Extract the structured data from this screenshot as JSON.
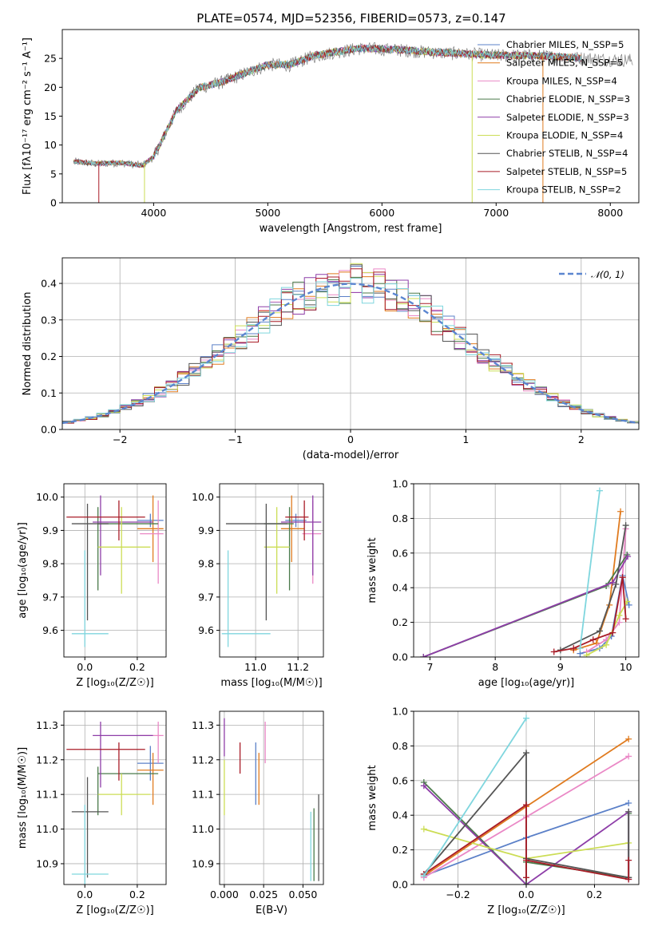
{
  "colors": {
    "c0": "#5b80c8",
    "c1": "#e07b1f",
    "c2": "#ea88c6",
    "c3": "#4a7a4a",
    "c4": "#8e3ea8",
    "c5": "#ccdd55",
    "c6": "#555555",
    "c7": "#a91c27",
    "c8": "#7fd6de"
  },
  "chart_data": [
    {
      "id": "spectrum",
      "type": "line",
      "title": "PLATE=0574, MJD=52356, FIBERID=0573, z=0.147",
      "xlabel": "wavelength [Angstrom, rest frame]",
      "ylabel": "Flux [fλ10⁻¹⁷ erg cm⁻² s⁻¹ A⁻¹]",
      "xlim": [
        3200,
        8250
      ],
      "ylim": [
        0,
        30
      ],
      "xticks": [
        "4000",
        "5000",
        "6000",
        "7000",
        "8000"
      ],
      "yticks": [
        "0",
        "5",
        "10",
        "15",
        "20",
        "25"
      ],
      "grid": false,
      "legend": "top-right",
      "continuum_x": [
        3300,
        3500,
        3700,
        3900,
        4000,
        4200,
        4400,
        4600,
        4800,
        5000,
        5200,
        5400,
        5600,
        5800,
        6000,
        6200,
        6400,
        6600,
        6800,
        7000,
        7200,
        7400,
        7600,
        7800,
        8000,
        8200
      ],
      "continuum_y": [
        7.2,
        6.8,
        7.0,
        6.5,
        8.0,
        16.0,
        20.0,
        21.0,
        22.5,
        24.0,
        24.0,
        25.5,
        26.2,
        26.8,
        26.7,
        26.5,
        26.2,
        26.0,
        25.8,
        25.6,
        25.6,
        25.5,
        25.3,
        25.1,
        24.9,
        24.8
      ],
      "series": [
        {
          "name": "Chabrier MILES, N_SSP=5"
        },
        {
          "name": "Salpeter MILES, N_SSP=5"
        },
        {
          "name": "Kroupa MILES, N_SSP=4"
        },
        {
          "name": "Chabrier ELODIE, N_SSP=3"
        },
        {
          "name": "Salpeter ELODIE, N_SSP=3"
        },
        {
          "name": "Kroupa ELODIE, N_SSP=4"
        },
        {
          "name": "Chabrier STELIB, N_SSP=4"
        },
        {
          "name": "Salpeter STELIB, N_SSP=5"
        },
        {
          "name": "Kroupa STELIB, N_SSP=2"
        }
      ]
    },
    {
      "id": "residuals",
      "type": "bar",
      "xlabel": "(data-model)/error",
      "ylabel": "Normed distribution",
      "xlim": [
        -2.5,
        2.5
      ],
      "ylim": [
        0,
        0.47
      ],
      "xticks": [
        "−2",
        "−1",
        "0",
        "1",
        "2"
      ],
      "yticks": [
        "0.0",
        "0.1",
        "0.2",
        "0.3",
        "0.4"
      ],
      "grid": true,
      "legend": "top-right",
      "reference_curve": "𝒩(0, 1)",
      "bin_width": 0.1
    },
    {
      "id": "age_vs_Z",
      "type": "scatter",
      "xlabel": "Z [log₁₀(Z/Z☉)]",
      "ylabel": "age  [log₁₀(age/yr)]",
      "xlim": [
        -0.08,
        0.31
      ],
      "ylim": [
        9.52,
        10.04
      ],
      "xticks": [
        "0.0",
        "0.2"
      ],
      "yticks": [
        "9.6",
        "9.7",
        "9.8",
        "9.9",
        "10.0"
      ],
      "grid": true,
      "points": [
        {
          "c": "c0",
          "x": 0.25,
          "xerr": [
            0.05,
            0.05
          ],
          "y": 9.93,
          "yerr": [
            0.02,
            0.02
          ]
        },
        {
          "c": "c1",
          "x": 0.26,
          "xerr": [
            0.06,
            0.04
          ],
          "y": 9.905,
          "yerr": [
            0.1,
            0.1
          ]
        },
        {
          "c": "c2",
          "x": 0.28,
          "xerr": [
            0.07,
            0.02
          ],
          "y": 9.89,
          "yerr": [
            0.15,
            0.1
          ]
        },
        {
          "c": "c3",
          "x": 0.05,
          "xerr": [
            0.0,
            0.23
          ],
          "y": 9.92,
          "yerr": [
            0.2,
            0.05
          ]
        },
        {
          "c": "c4",
          "x": 0.06,
          "xerr": [
            0.03,
            0.2
          ],
          "y": 9.925,
          "yerr": [
            0.16,
            0.08
          ]
        },
        {
          "c": "c5",
          "x": 0.14,
          "xerr": [
            0.09,
            0.11
          ],
          "y": 9.85,
          "yerr": [
            0.14,
            0.12
          ]
        },
        {
          "c": "c6",
          "x": 0.01,
          "xerr": [
            0.06,
            0.08
          ],
          "y": 9.92,
          "yerr": [
            0.29,
            0.06
          ]
        },
        {
          "c": "c7",
          "x": 0.13,
          "xerr": [
            0.2,
            0.1
          ],
          "y": 9.94,
          "yerr": [
            0.07,
            0.05
          ]
        },
        {
          "c": "c8",
          "x": 0.0,
          "xerr": [
            0.05,
            0.09
          ],
          "y": 9.59,
          "yerr": [
            0.04,
            0.25
          ]
        }
      ]
    },
    {
      "id": "age_vs_mass",
      "type": "scatter",
      "xlabel": "mass [log₁₀(M/M☉)]",
      "ylabel": "",
      "xlim": [
        10.83,
        11.32
      ],
      "ylim": [
        9.52,
        10.04
      ],
      "xticks": [
        "11.0",
        "11.2"
      ],
      "yticks": [
        "9.6",
        "9.7",
        "9.8",
        "9.9",
        "10.0"
      ],
      "grid": true,
      "points": [
        {
          "c": "c0",
          "x": 11.19,
          "xerr": [
            0.05,
            0.05
          ],
          "y": 9.93,
          "yerr": [
            0.02,
            0.02
          ]
        },
        {
          "c": "c1",
          "x": 11.17,
          "xerr": [
            0.05,
            0.06
          ],
          "y": 9.905,
          "yerr": [
            0.1,
            0.1
          ]
        },
        {
          "c": "c2",
          "x": 11.27,
          "xerr": [
            0.05,
            0.04
          ],
          "y": 9.89,
          "yerr": [
            0.15,
            0.1
          ]
        },
        {
          "c": "c3",
          "x": 11.16,
          "xerr": [
            0.12,
            0.02
          ],
          "y": 9.92,
          "yerr": [
            0.2,
            0.05
          ]
        },
        {
          "c": "c4",
          "x": 11.27,
          "xerr": [
            0.15,
            0.04
          ],
          "y": 9.925,
          "yerr": [
            0.16,
            0.08
          ]
        },
        {
          "c": "c5",
          "x": 11.1,
          "xerr": [
            0.06,
            0.06
          ],
          "y": 9.85,
          "yerr": [
            0.14,
            0.12
          ]
        },
        {
          "c": "c6",
          "x": 11.05,
          "xerr": [
            0.19,
            0.1
          ],
          "y": 9.92,
          "yerr": [
            0.29,
            0.06
          ]
        },
        {
          "c": "c7",
          "x": 11.23,
          "xerr": [
            0.09,
            0.02
          ],
          "y": 9.94,
          "yerr": [
            0.07,
            0.05
          ]
        },
        {
          "c": "c8",
          "x": 10.87,
          "xerr": [
            0.03,
            0.2
          ],
          "y": 9.59,
          "yerr": [
            0.04,
            0.25
          ]
        }
      ]
    },
    {
      "id": "weight_vs_age",
      "type": "line",
      "xlabel": "age  [log₁₀(age/yr)]",
      "ylabel": "mass weight",
      "xlim": [
        6.75,
        10.2
      ],
      "ylim": [
        0,
        1.0
      ],
      "xticks": [
        "7",
        "8",
        "9",
        "10"
      ],
      "yticks": [
        "0.0",
        "0.2",
        "0.4",
        "0.6",
        "0.8",
        "1.0"
      ],
      "grid": true,
      "series": [
        {
          "c": "c0",
          "x": [
            9.3,
            9.6,
            9.78,
            9.95,
            10.05
          ],
          "y": [
            0.02,
            0.05,
            0.12,
            0.47,
            0.3
          ]
        },
        {
          "c": "c1",
          "x": [
            9.2,
            9.55,
            9.75,
            9.92
          ],
          "y": [
            0.04,
            0.08,
            0.3,
            0.84
          ]
        },
        {
          "c": "c2",
          "x": [
            9.4,
            9.7,
            9.9,
            10.0
          ],
          "y": [
            0.03,
            0.1,
            0.2,
            0.74
          ]
        },
        {
          "c": "c3",
          "x": [
            6.9,
            9.7,
            10.02
          ],
          "y": [
            0.0,
            0.41,
            0.59
          ]
        },
        {
          "c": "c4",
          "x": [
            6.9,
            9.8,
            10.03
          ],
          "y": [
            0.0,
            0.43,
            0.58
          ]
        },
        {
          "c": "c5",
          "x": [
            9.4,
            9.7,
            9.9,
            10.02
          ],
          "y": [
            0.01,
            0.07,
            0.24,
            0.32
          ]
        },
        {
          "c": "c6",
          "x": [
            9.0,
            9.6,
            9.85,
            10.0
          ],
          "y": [
            0.04,
            0.15,
            0.42,
            0.76
          ]
        },
        {
          "c": "c7",
          "x": [
            8.9,
            9.2,
            9.5,
            9.8,
            9.95,
            10.0
          ],
          "y": [
            0.03,
            0.05,
            0.1,
            0.14,
            0.46,
            0.22
          ]
        },
        {
          "c": "c8",
          "x": [
            9.3,
            9.6
          ],
          "y": [
            0.05,
            0.96
          ]
        }
      ]
    },
    {
      "id": "mass_vs_Z",
      "type": "scatter",
      "xlabel": "Z [log₁₀(Z/Z☉)]",
      "ylabel": "mass [log₁₀(M/M☉)]",
      "xlim": [
        -0.08,
        0.31
      ],
      "ylim": [
        10.84,
        11.34
      ],
      "xticks": [
        "0.0",
        "0.2"
      ],
      "yticks": [
        "10.9",
        "11.0",
        "11.1",
        "11.2",
        "11.3"
      ],
      "grid": true,
      "points": [
        {
          "c": "c0",
          "x": 0.25,
          "xerr": [
            0.05,
            0.05
          ],
          "y": 11.19,
          "yerr": [
            0.05,
            0.05
          ]
        },
        {
          "c": "c1",
          "x": 0.26,
          "xerr": [
            0.06,
            0.04
          ],
          "y": 11.17,
          "yerr": [
            0.1,
            0.05
          ]
        },
        {
          "c": "c2",
          "x": 0.28,
          "xerr": [
            0.07,
            0.02
          ],
          "y": 11.27,
          "yerr": [
            0.08,
            0.04
          ]
        },
        {
          "c": "c3",
          "x": 0.05,
          "xerr": [
            0.0,
            0.23
          ],
          "y": 11.16,
          "yerr": [
            0.12,
            0.02
          ]
        },
        {
          "c": "c4",
          "x": 0.06,
          "xerr": [
            0.03,
            0.2
          ],
          "y": 11.27,
          "yerr": [
            0.15,
            0.04
          ]
        },
        {
          "c": "c5",
          "x": 0.14,
          "xerr": [
            0.09,
            0.11
          ],
          "y": 11.1,
          "yerr": [
            0.06,
            0.06
          ]
        },
        {
          "c": "c6",
          "x": 0.01,
          "xerr": [
            0.06,
            0.08
          ],
          "y": 11.05,
          "yerr": [
            0.19,
            0.1
          ]
        },
        {
          "c": "c7",
          "x": 0.13,
          "xerr": [
            0.2,
            0.1
          ],
          "y": 11.23,
          "yerr": [
            0.09,
            0.02
          ]
        },
        {
          "c": "c8",
          "x": 0.0,
          "xerr": [
            0.05,
            0.09
          ],
          "y": 10.87,
          "yerr": [
            0.03,
            0.2
          ]
        }
      ]
    },
    {
      "id": "mass_vs_ebv",
      "type": "scatter",
      "xlabel": "E(B-V)",
      "ylabel": "",
      "xlim": [
        -0.003,
        0.063
      ],
      "ylim": [
        10.84,
        11.34
      ],
      "xticks": [
        "0.000",
        "0.025",
        "0.050"
      ],
      "yticks": [
        "10.9",
        "11.0",
        "11.1",
        "11.2",
        "11.3"
      ],
      "grid": true,
      "points": [
        {
          "c": "c0",
          "x": 0.02,
          "y": 11.19,
          "yerr": [
            0.12,
            0.06
          ]
        },
        {
          "c": "c1",
          "x": 0.022,
          "y": 11.17,
          "yerr": [
            0.1,
            0.05
          ]
        },
        {
          "c": "c2",
          "x": 0.026,
          "y": 11.27,
          "yerr": [
            0.08,
            0.04
          ]
        },
        {
          "c": "c3",
          "x": 0.057,
          "y": 11.0,
          "yerr": [
            0.15,
            0.06
          ]
        },
        {
          "c": "c4",
          "x": 0.0,
          "y": 11.27,
          "yerr": [
            0.06,
            0.05
          ]
        },
        {
          "c": "c5",
          "x": 0.0,
          "y": 11.1,
          "yerr": [
            0.06,
            0.1
          ]
        },
        {
          "c": "c6",
          "x": 0.06,
          "y": 11.0,
          "yerr": [
            0.15,
            0.1
          ]
        },
        {
          "c": "c7",
          "x": 0.01,
          "y": 11.2,
          "yerr": [
            0.04,
            0.05
          ]
        },
        {
          "c": "c8",
          "x": 0.055,
          "y": 10.95,
          "yerr": [
            0.1,
            0.1
          ]
        }
      ]
    },
    {
      "id": "weight_vs_Z",
      "type": "line",
      "xlabel": "Z [log₁₀(Z/Z☉)]",
      "ylabel": "mass weight",
      "xlim": [
        -0.33,
        0.33
      ],
      "ylim": [
        0,
        1.0
      ],
      "xticks": [
        "−0.2",
        "0.0",
        "0.2"
      ],
      "yticks": [
        "0.0",
        "0.2",
        "0.4",
        "0.6",
        "0.8",
        "1.0"
      ],
      "grid": true,
      "series": [
        {
          "c": "c0",
          "x": [
            -0.3,
            0.0,
            0.3
          ],
          "y": [
            0.05,
            0.27,
            0.47
          ]
        },
        {
          "c": "c1",
          "x": [
            -0.3,
            0.0,
            0.3
          ],
          "y": [
            0.05,
            0.45,
            0.84
          ]
        },
        {
          "c": "c2",
          "x": [
            -0.3,
            0.0,
            0.3
          ],
          "y": [
            0.04,
            0.39,
            0.74
          ]
        },
        {
          "c": "c3",
          "x": [
            -0.3,
            0.0,
            0.0,
            0.3,
            0.3
          ],
          "y": [
            0.59,
            0.0,
            0.13,
            0.04,
            0.41
          ]
        },
        {
          "c": "c4",
          "x": [
            -0.3,
            0.0,
            0.3,
            0.3
          ],
          "y": [
            0.57,
            0.0,
            0.42,
            0.03
          ]
        },
        {
          "c": "c5",
          "x": [
            -0.3,
            0.0,
            0.3
          ],
          "y": [
            0.32,
            0.15,
            0.24
          ]
        },
        {
          "c": "c6",
          "x": [
            -0.3,
            0.0,
            0.0,
            0.0,
            0.3,
            0.3
          ],
          "y": [
            0.06,
            0.76,
            0.0,
            0.15,
            0.04,
            0.42
          ]
        },
        {
          "c": "c7",
          "x": [
            -0.3,
            0.0,
            0.0,
            0.0,
            0.3,
            0.3
          ],
          "y": [
            0.06,
            0.46,
            0.04,
            0.14,
            0.03,
            0.14
          ]
        },
        {
          "c": "c8",
          "x": [
            -0.3,
            0.0
          ],
          "y": [
            0.05,
            0.96
          ]
        }
      ]
    }
  ]
}
